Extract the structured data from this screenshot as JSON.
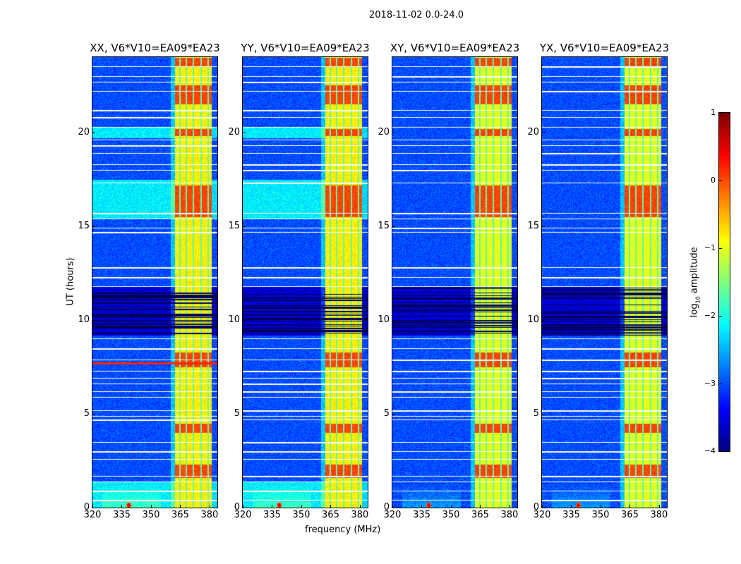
{
  "suptitle": "2018-11-02 0.0-24.0",
  "chart_data": {
    "type": "heatmap",
    "panels": [
      {
        "title": "XX, V6*V10=EA09*EA23",
        "cyan_background": true
      },
      {
        "title": "YY, V6*V10=EA09*EA23",
        "cyan_background": true
      },
      {
        "title": "XY, V6*V10=EA09*EA23",
        "cyan_background": false
      },
      {
        "title": "YX, V6*V10=EA09*EA23",
        "cyan_background": false
      }
    ],
    "xlabel": "frequency (MHz)",
    "ylabel": "UT (hours)",
    "xlim": [
      320,
      384
    ],
    "ylim": [
      0,
      24
    ],
    "xticks": [
      "320",
      "335",
      "350",
      "365",
      "380"
    ],
    "xtick_values": [
      320,
      335,
      350,
      365,
      380
    ],
    "yticks": [
      "0",
      "5",
      "10",
      "15",
      "20"
    ],
    "ytick_values": [
      0,
      5,
      10,
      15,
      20
    ],
    "colorbar": {
      "label_main": "log",
      "label_sub": "10",
      "label_rest": " amplitude",
      "range": [
        -4,
        1
      ],
      "ticks": [
        "1",
        "0",
        "−1",
        "−2",
        "−3",
        "−4"
      ],
      "tick_values": [
        1,
        0,
        -1,
        -2,
        -3,
        -4
      ],
      "colormap": "jet"
    },
    "background_level": -3.0,
    "bright_band_mhz": [
      362,
      381
    ],
    "bright_band_level": -0.8,
    "subband_gaps_mhz": [
      364.5,
      368,
      371.5,
      375.5,
      379
    ],
    "rfi_source": {
      "freq_mhz": 338.5,
      "time_h": 0.15,
      "level": 0.5
    },
    "strong_intervals_h": [
      [
        1.6,
        2.3
      ],
      [
        4.0,
        4.5
      ],
      [
        7.5,
        8.3
      ],
      [
        15.5,
        17.2
      ],
      [
        19.8,
        20.2
      ],
      [
        21.5,
        22.5
      ],
      [
        23.5,
        24
      ]
    ],
    "cyan_intervals_h": [
      [
        15.4,
        17.5
      ],
      [
        19.7,
        20.3
      ],
      [
        0,
        1.4
      ]
    ],
    "dark_interval_h": [
      9.2,
      11.8
    ],
    "flagged_times_h": [
      0.4,
      0.9,
      1.4,
      1.7,
      2.6,
      3.0,
      3.5,
      4.7,
      4.9,
      5.2,
      5.9,
      6.2,
      6.6,
      6.9,
      7.3,
      7.9,
      8.5,
      9.0,
      11.8,
      12.3,
      12.8,
      14.7,
      14.9,
      15.4,
      15.7,
      17.3,
      18.0,
      18.3,
      18.9,
      19.3,
      19.6,
      20.3,
      20.8,
      21.2,
      22.2,
      22.7,
      23.0,
      23.5
    ]
  }
}
